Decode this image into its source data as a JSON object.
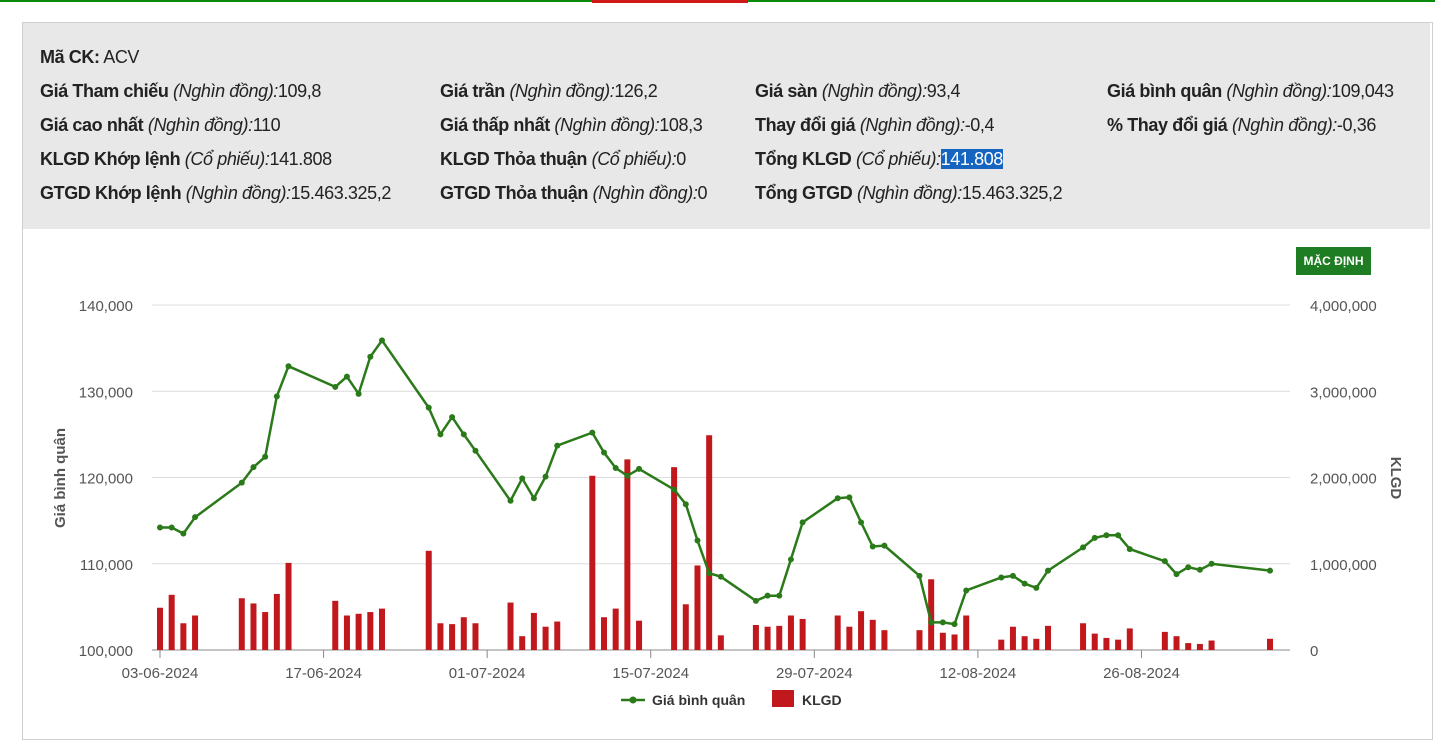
{
  "info": {
    "symbol_label": "Mã CK:",
    "symbol": "ACV",
    "fields": [
      {
        "label": "Giá Tham chiếu",
        "unit": "(Nghìn đồng):",
        "value": "109,8"
      },
      {
        "label": "Giá trần",
        "unit": "(Nghìn đồng):",
        "value": "126,2"
      },
      {
        "label": "Giá sàn",
        "unit": "(Nghìn đồng):",
        "value": "93,4"
      },
      {
        "label": "Giá bình quân",
        "unit": "(Nghìn đồng):",
        "value": "109,043"
      },
      {
        "label": "Giá cao nhất",
        "unit": "(Nghìn đồng):",
        "value": "110"
      },
      {
        "label": "Giá thấp nhất",
        "unit": "(Nghìn đồng):",
        "value": "108,3"
      },
      {
        "label": "Thay đổi giá",
        "unit": "(Nghìn đồng):",
        "value": "-0,4"
      },
      {
        "label": "% Thay đổi giá",
        "unit": "(Nghìn đồng):",
        "value": "-0,36"
      },
      {
        "label": "KLGD Khớp lệnh",
        "unit": "(Cổ phiếu):",
        "value": "141.808"
      },
      {
        "label": "KLGD Thỏa thuận",
        "unit": "(Cổ phiếu):",
        "value": "0"
      },
      {
        "label": "Tổng KLGD",
        "unit": "(Cổ phiếu):",
        "value": "141.808"
      },
      {
        "label": "GTGD Khớp lệnh",
        "unit": "(Nghìn đồng):",
        "value": "15.463.325,2"
      },
      {
        "label": "GTGD Thỏa thuận",
        "unit": "(Nghìn đồng):",
        "value": "0"
      },
      {
        "label": "Tổng GTGD",
        "unit": "(Nghìn đồng):",
        "value": "15.463.325,2"
      }
    ]
  },
  "button_label": "MẶC ĐỊNH",
  "colors": {
    "line": "#2a7a1a",
    "bar": "#c0181c",
    "button": "#1e7d22",
    "highlight": "#1565c0"
  },
  "chart_data": {
    "type": "line+bar",
    "ylabel": "Giá bình quân",
    "y2label": "KLGD",
    "ylim": [
      100000,
      140000
    ],
    "y2lim": [
      0,
      4000000
    ],
    "yticks": [
      "100,000",
      "110,000",
      "120,000",
      "130,000",
      "140,000"
    ],
    "y2ticks": [
      "0",
      "1,000,000",
      "2,000,000",
      "3,000,000",
      "4,000,000"
    ],
    "xticks": [
      "03-06-2024",
      "17-06-2024",
      "01-07-2024",
      "15-07-2024",
      "29-07-2024",
      "12-08-2024",
      "26-08-2024"
    ],
    "grid": true,
    "legend": "bottom-center",
    "series": [
      {
        "name": "Giá bình quân",
        "type": "line",
        "points": [
          [
            "2024-06-03",
            114200
          ],
          [
            "2024-06-04",
            114200
          ],
          [
            "2024-06-05",
            113500
          ],
          [
            "2024-06-06",
            115400
          ],
          [
            "2024-06-10",
            119400
          ],
          [
            "2024-06-11",
            121200
          ],
          [
            "2024-06-12",
            122400
          ],
          [
            "2024-06-13",
            129400
          ],
          [
            "2024-06-14",
            132900
          ],
          [
            "2024-06-18",
            130500
          ],
          [
            "2024-06-19",
            131700
          ],
          [
            "2024-06-20",
            129700
          ],
          [
            "2024-06-21",
            134000
          ],
          [
            "2024-06-22",
            135900
          ],
          [
            "2024-06-26",
            128100
          ],
          [
            "2024-06-27",
            125000
          ],
          [
            "2024-06-28",
            127000
          ],
          [
            "2024-06-29",
            125000
          ],
          [
            "2024-06-30",
            123100
          ],
          [
            "2024-07-03",
            117300
          ],
          [
            "2024-07-04",
            119900
          ],
          [
            "2024-07-05",
            117600
          ],
          [
            "2024-07-06",
            120100
          ],
          [
            "2024-07-07",
            123700
          ],
          [
            "2024-07-10",
            125200
          ],
          [
            "2024-07-11",
            122900
          ],
          [
            "2024-07-12",
            121100
          ],
          [
            "2024-07-13",
            120200
          ],
          [
            "2024-07-14",
            121000
          ],
          [
            "2024-07-17",
            118600
          ],
          [
            "2024-07-18",
            116900
          ],
          [
            "2024-07-19",
            112700
          ],
          [
            "2024-07-20",
            108900
          ],
          [
            "2024-07-21",
            108500
          ],
          [
            "2024-07-24",
            105700
          ],
          [
            "2024-07-25",
            106300
          ],
          [
            "2024-07-26",
            106300
          ],
          [
            "2024-07-27",
            110500
          ],
          [
            "2024-07-28",
            114800
          ],
          [
            "2024-07-31",
            117600
          ],
          [
            "2024-08-01",
            117700
          ],
          [
            "2024-08-02",
            114800
          ],
          [
            "2024-08-03",
            112000
          ],
          [
            "2024-08-04",
            112100
          ],
          [
            "2024-08-07",
            108600
          ],
          [
            "2024-08-08",
            103200
          ],
          [
            "2024-08-09",
            103200
          ],
          [
            "2024-08-10",
            103000
          ],
          [
            "2024-08-11",
            106900
          ],
          [
            "2024-08-14",
            108400
          ],
          [
            "2024-08-15",
            108600
          ],
          [
            "2024-08-16",
            107700
          ],
          [
            "2024-08-17",
            107200
          ],
          [
            "2024-08-18",
            109200
          ],
          [
            "2024-08-21",
            111900
          ],
          [
            "2024-08-22",
            113000
          ],
          [
            "2024-08-23",
            113300
          ],
          [
            "2024-08-24",
            113300
          ],
          [
            "2024-08-25",
            111700
          ],
          [
            "2024-08-28",
            110300
          ],
          [
            "2024-08-29",
            108800
          ],
          [
            "2024-08-30",
            109600
          ],
          [
            "2024-08-31",
            109300
          ],
          [
            "2024-09-01",
            110000
          ],
          [
            "2024-09-06",
            109200
          ]
        ]
      },
      {
        "name": "KLGD",
        "type": "bar",
        "points": [
          [
            "2024-06-03",
            490000
          ],
          [
            "2024-06-04",
            640000
          ],
          [
            "2024-06-05",
            310000
          ],
          [
            "2024-06-06",
            400000
          ],
          [
            "2024-06-10",
            600000
          ],
          [
            "2024-06-11",
            540000
          ],
          [
            "2024-06-12",
            440000
          ],
          [
            "2024-06-13",
            650000
          ],
          [
            "2024-06-14",
            1010000
          ],
          [
            "2024-06-18",
            570000
          ],
          [
            "2024-06-19",
            400000
          ],
          [
            "2024-06-20",
            420000
          ],
          [
            "2024-06-21",
            440000
          ],
          [
            "2024-06-22",
            480000
          ],
          [
            "2024-06-26",
            1150000
          ],
          [
            "2024-06-27",
            310000
          ],
          [
            "2024-06-28",
            300000
          ],
          [
            "2024-06-29",
            380000
          ],
          [
            "2024-06-30",
            310000
          ],
          [
            "2024-07-03",
            550000
          ],
          [
            "2024-07-04",
            160000
          ],
          [
            "2024-07-05",
            430000
          ],
          [
            "2024-07-06",
            270000
          ],
          [
            "2024-07-07",
            330000
          ],
          [
            "2024-07-10",
            2020000
          ],
          [
            "2024-07-11",
            380000
          ],
          [
            "2024-07-12",
            480000
          ],
          [
            "2024-07-13",
            2210000
          ],
          [
            "2024-07-14",
            340000
          ],
          [
            "2024-07-17",
            2120000
          ],
          [
            "2024-07-18",
            530000
          ],
          [
            "2024-07-19",
            980000
          ],
          [
            "2024-07-20",
            2490000
          ],
          [
            "2024-07-21",
            170000
          ],
          [
            "2024-07-24",
            290000
          ],
          [
            "2024-07-25",
            270000
          ],
          [
            "2024-07-26",
            280000
          ],
          [
            "2024-07-27",
            400000
          ],
          [
            "2024-07-28",
            360000
          ],
          [
            "2024-07-31",
            400000
          ],
          [
            "2024-08-01",
            270000
          ],
          [
            "2024-08-02",
            450000
          ],
          [
            "2024-08-03",
            350000
          ],
          [
            "2024-08-04",
            230000
          ],
          [
            "2024-08-07",
            230000
          ],
          [
            "2024-08-08",
            820000
          ],
          [
            "2024-08-09",
            200000
          ],
          [
            "2024-08-10",
            180000
          ],
          [
            "2024-08-11",
            400000
          ],
          [
            "2024-08-14",
            120000
          ],
          [
            "2024-08-15",
            270000
          ],
          [
            "2024-08-16",
            160000
          ],
          [
            "2024-08-17",
            130000
          ],
          [
            "2024-08-18",
            280000
          ],
          [
            "2024-08-21",
            310000
          ],
          [
            "2024-08-22",
            190000
          ],
          [
            "2024-08-23",
            140000
          ],
          [
            "2024-08-24",
            120000
          ],
          [
            "2024-08-25",
            250000
          ],
          [
            "2024-08-28",
            210000
          ],
          [
            "2024-08-29",
            160000
          ],
          [
            "2024-08-30",
            80000
          ],
          [
            "2024-08-31",
            70000
          ],
          [
            "2024-09-01",
            110000
          ],
          [
            "2024-09-06",
            130000
          ]
        ]
      }
    ]
  }
}
